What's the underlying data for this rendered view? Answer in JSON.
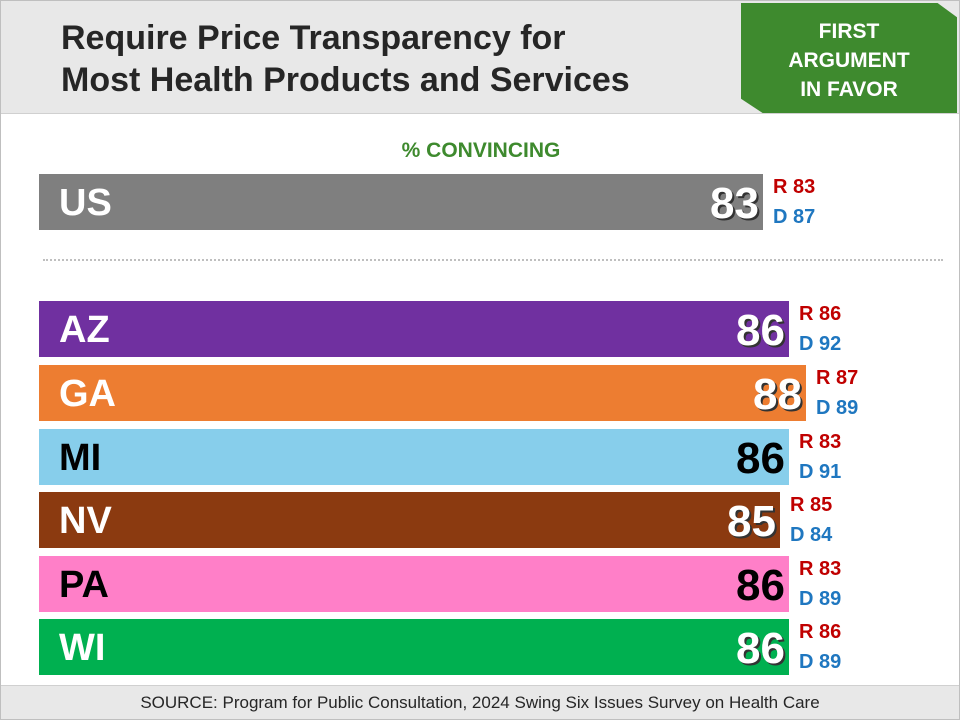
{
  "header": {
    "title_line1": "Require Price Transparency for",
    "title_line2": "Most Health Products and Services",
    "badge_line1": "FIRST",
    "badge_line2": "ARGUMENT",
    "badge_line3": "IN FAVOR",
    "badge_color": "#3e8a2e"
  },
  "subtitle": "% CONVINCING",
  "footer": "SOURCE: Program for Public Consultation, 2024 Swing Six Issues Survey on Health Care",
  "chart_data": {
    "type": "bar",
    "orientation": "horizontal",
    "title": "Require Price Transparency for Most Health Products and Services",
    "subtitle": "% CONVINCING",
    "categories": [
      "US",
      "AZ",
      "GA",
      "MI",
      "NV",
      "PA",
      "WI"
    ],
    "values": [
      83,
      86,
      88,
      86,
      85,
      86,
      86
    ],
    "xlim": [
      0,
      100
    ],
    "colors": [
      "#7f7f7f",
      "#7030a0",
      "#ed7d31",
      "#87ceeb",
      "#8b3a10",
      "#ff7fc8",
      "#00b050"
    ],
    "partisan": {
      "R": [
        83,
        86,
        87,
        83,
        85,
        83,
        86
      ],
      "D": [
        87,
        92,
        89,
        91,
        84,
        89,
        89
      ]
    },
    "r_prefix": "R",
    "d_prefix": "D"
  }
}
